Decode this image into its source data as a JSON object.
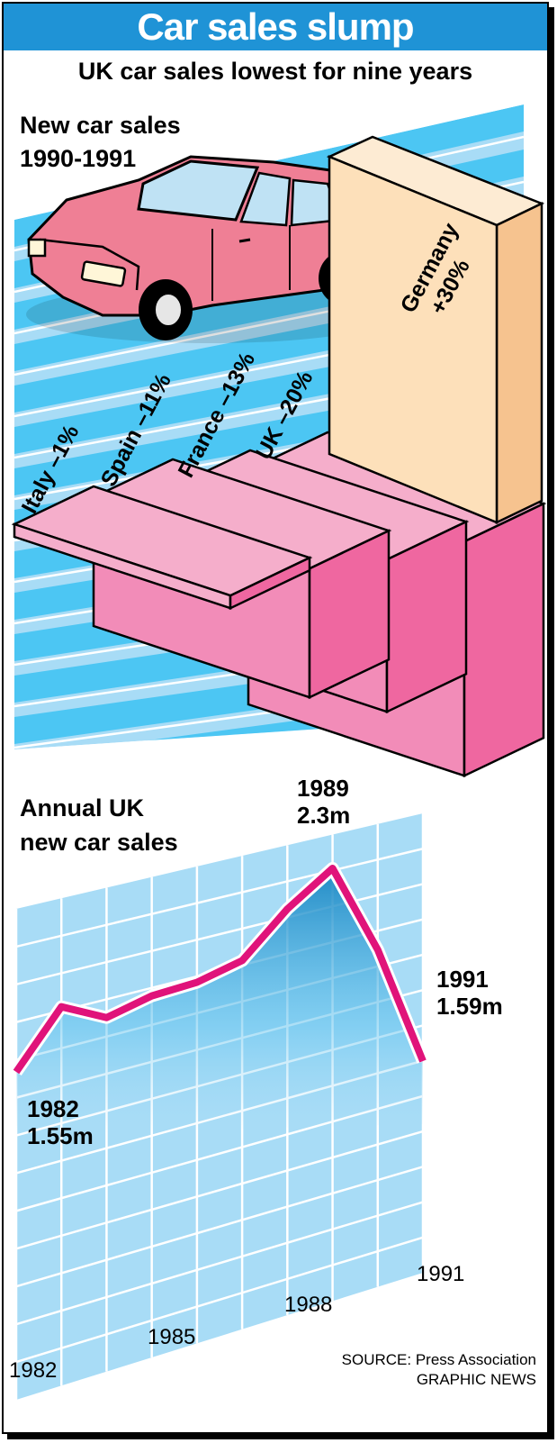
{
  "title": "Car sales slump",
  "subtitle": "UK car sales lowest for nine years",
  "colors": {
    "title_bg": "#1f93d6",
    "stripe_light": "#a8dcf6",
    "stripe_dark": "#4cc6f3",
    "pink_top": "#f5aecb",
    "pink_side": "#ef67a0",
    "pink_line": "#e0137a",
    "germany_front": "#fde0ba",
    "germany_top": "#fdebd3",
    "car_body": "#ef7f95",
    "chart_fill": "#1e9bd0"
  },
  "source": {
    "line1": "SOURCE: Press Association",
    "line2": "GRAPHIC NEWS"
  },
  "chart_data": [
    {
      "type": "bar",
      "title": "New car sales\n1990-1991",
      "title_lines": [
        "New car sales",
        "1990-1991"
      ],
      "categories": [
        "Italy",
        "Spain",
        "France",
        "UK",
        "Germany"
      ],
      "values": [
        -1,
        -11,
        -13,
        -20,
        30
      ],
      "value_labels": [
        "–1%",
        "–11%",
        "–13%",
        "–20%",
        "+30%"
      ],
      "unit": "%",
      "icon": "car-icon"
    },
    {
      "type": "line",
      "title": "Annual UK\nnew car sales",
      "title_lines": [
        "Annual UK",
        "new car sales"
      ],
      "x": [
        1982,
        1983,
        1984,
        1985,
        1986,
        1987,
        1988,
        1989,
        1990,
        1991
      ],
      "y": [
        1.55,
        1.79,
        1.75,
        1.83,
        1.88,
        1.96,
        2.15,
        2.3,
        2.0,
        1.59
      ],
      "x_tick_labels": [
        "1982",
        "1985",
        "1988",
        "1991"
      ],
      "x_ticks": [
        1982,
        1985,
        1988,
        1991
      ],
      "annotations": [
        {
          "x": 1982,
          "line1": "1982",
          "line2": "1.55m"
        },
        {
          "x": 1989,
          "line1": "1989",
          "line2": "2.3m"
        },
        {
          "x": 1991,
          "line1": "1991",
          "line2": "1.59m"
        }
      ],
      "unit": "m",
      "grid": true
    }
  ]
}
